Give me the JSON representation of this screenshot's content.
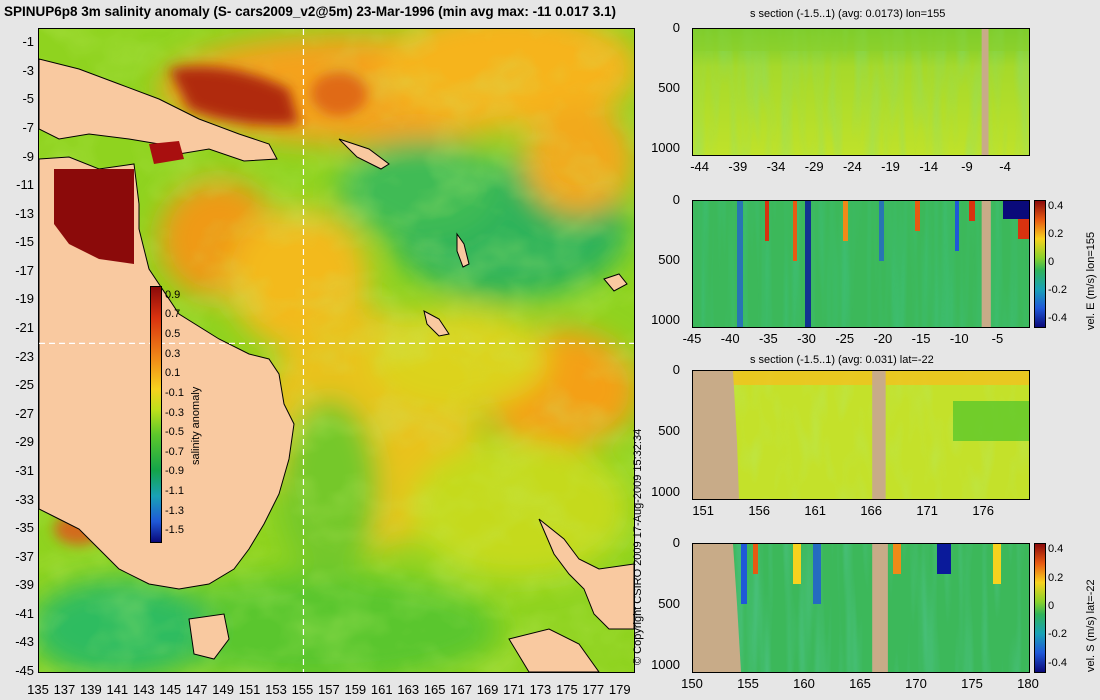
{
  "title": "SPINUP6p8 3m salinity anomaly (S- cars2009_v2@5m) 23-Mar-1996 (min avg max: -11 0.017 3.1)",
  "copyright": "© Copyright CSIRO 2009   17-Aug-2009 15:32:34",
  "colors": {
    "land": "#f9c9a0",
    "section_land": "#c8ab88",
    "crosshair": "#ffffff"
  },
  "chart_data": [
    {
      "type": "heatmap",
      "name": "map",
      "x_ticks": [
        "135",
        "137",
        "139",
        "141",
        "143",
        "145",
        "147",
        "149",
        "151",
        "153",
        "155",
        "157",
        "159",
        "161",
        "163",
        "165",
        "167",
        "169",
        "171",
        "173",
        "175",
        "177",
        "179"
      ],
      "y_ticks": [
        "-1",
        "-3",
        "-5",
        "-7",
        "-9",
        "-11",
        "-13",
        "-15",
        "-17",
        "-19",
        "-21",
        "-23",
        "-25",
        "-27",
        "-29",
        "-31",
        "-33",
        "-35",
        "-37",
        "-39",
        "-41",
        "-43",
        "-45"
      ],
      "xlim": [
        135,
        180
      ],
      "ylim": [
        -45,
        0
      ],
      "crosshair": {
        "lon": 155,
        "lat": -22
      },
      "colorbar": {
        "label": "salinity anomaly",
        "ticks": [
          "0.9",
          "0.7",
          "0.5",
          "0.3",
          "0.1",
          "-0.1",
          "-0.3",
          "-0.5",
          "-0.7",
          "-0.9",
          "-1.1",
          "-1.3",
          "-1.5"
        ],
        "range": [
          -1.6,
          1.0
        ]
      }
    },
    {
      "type": "heatmap",
      "name": "s-section-lon155",
      "title": "s section (-1.5..1) (avg: 0.0173) lon=155",
      "x_ticks": [
        "-44",
        "-39",
        "-34",
        "-29",
        "-24",
        "-19",
        "-14",
        "-9",
        "-4"
      ],
      "y_ticks": [
        "0",
        "500",
        "1000"
      ],
      "xlim": [
        -45,
        -1
      ],
      "ylim": [
        0,
        1050
      ],
      "land_columns": [
        [
          -7.2,
          -6.3
        ]
      ]
    },
    {
      "type": "heatmap",
      "name": "velE-section-lon155",
      "title": "",
      "x_ticks": [
        "-45",
        "-40",
        "-35",
        "-30",
        "-25",
        "-20",
        "-15",
        "-10",
        "-5"
      ],
      "y_ticks": [
        "0",
        "500",
        "1000"
      ],
      "xlim": [
        -45,
        -1
      ],
      "ylim": [
        0,
        1050
      ],
      "land_columns": [
        [
          -7.2,
          -6.0
        ]
      ],
      "colorbar": {
        "label": "vel. E (m/s) lon=155",
        "ticks": [
          "0.4",
          "0.2",
          "0",
          "-0.2",
          "-0.4"
        ],
        "range": [
          -0.45,
          0.45
        ]
      }
    },
    {
      "type": "heatmap",
      "name": "s-section-lat-22",
      "title": "s section (-1.5..1) (avg: 0.031) lat=-22",
      "x_ticks": [
        "151",
        "156",
        "161",
        "166",
        "171",
        "176"
      ],
      "y_ticks": [
        "0",
        "500",
        "1000"
      ],
      "xlim": [
        150,
        180
      ],
      "ylim": [
        0,
        1050
      ],
      "land_columns": [
        [
          166.0,
          167.2
        ]
      ]
    },
    {
      "type": "heatmap",
      "name": "velS-section-lat-22",
      "title": "",
      "x_ticks": [
        "150",
        "155",
        "160",
        "165",
        "170",
        "175",
        "180"
      ],
      "y_ticks": [
        "0",
        "500",
        "1000"
      ],
      "xlim": [
        150,
        180
      ],
      "ylim": [
        0,
        1050
      ],
      "land_columns": [
        [
          166.0,
          167.4
        ]
      ],
      "colorbar": {
        "label": "vel. S (m/s) lat=-22",
        "ticks": [
          "0.4",
          "0.2",
          "0",
          "-0.2",
          "-0.4"
        ],
        "range": [
          -0.45,
          0.45
        ]
      }
    }
  ]
}
